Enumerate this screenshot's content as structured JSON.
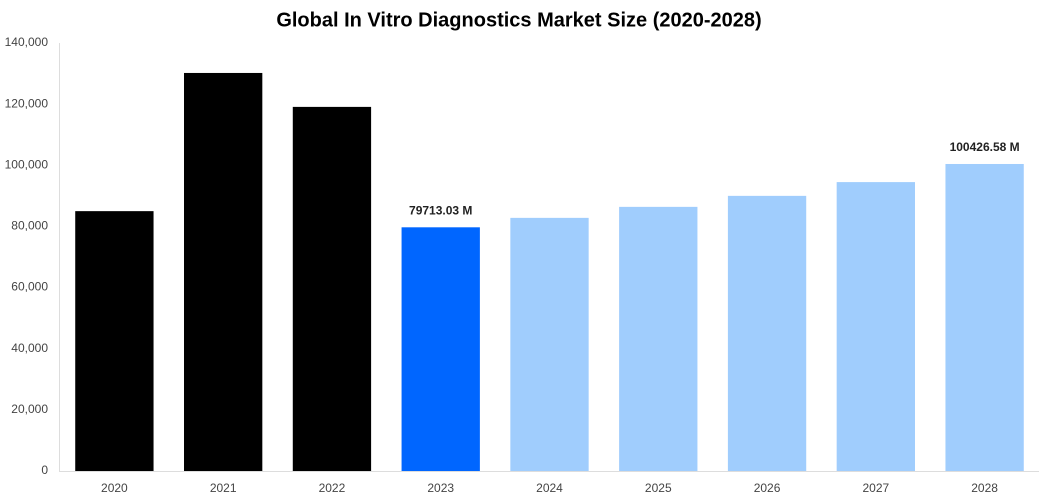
{
  "chart_data": {
    "type": "bar",
    "title": "Global In Vitro Diagnostics Market Size (2020-2028)",
    "categories": [
      "2020",
      "2021",
      "2022",
      "2023",
      "2024",
      "2025",
      "2026",
      "2027",
      "2028"
    ],
    "values": [
      85000,
      130200,
      119100,
      79713.03,
      82800,
      86400,
      90000,
      94500,
      100426.58
    ],
    "value_labels": [
      null,
      null,
      null,
      "79713.03 M",
      null,
      null,
      null,
      null,
      "100426.58 M"
    ],
    "colors": [
      "#000000",
      "#000000",
      "#000000",
      "#0066ff",
      "#a0cdfd",
      "#a0cdfd",
      "#a0cdfd",
      "#a0cdfd",
      "#a0cdfd"
    ],
    "ylim": [
      0,
      140000
    ],
    "yticks": [
      0,
      {
        "value": 20000,
        "label": "20,000"
      },
      {
        "value": 40000,
        "label": "40,000"
      },
      {
        "value": 60000,
        "label": "60,000"
      },
      {
        "value": 80000,
        "label": "80,000"
      },
      {
        "value": 100000,
        "label": "100,000"
      },
      {
        "value": 120000,
        "label": "120,000"
      },
      {
        "value": 140000,
        "label": "140,000"
      }
    ],
    "grid": false
  }
}
